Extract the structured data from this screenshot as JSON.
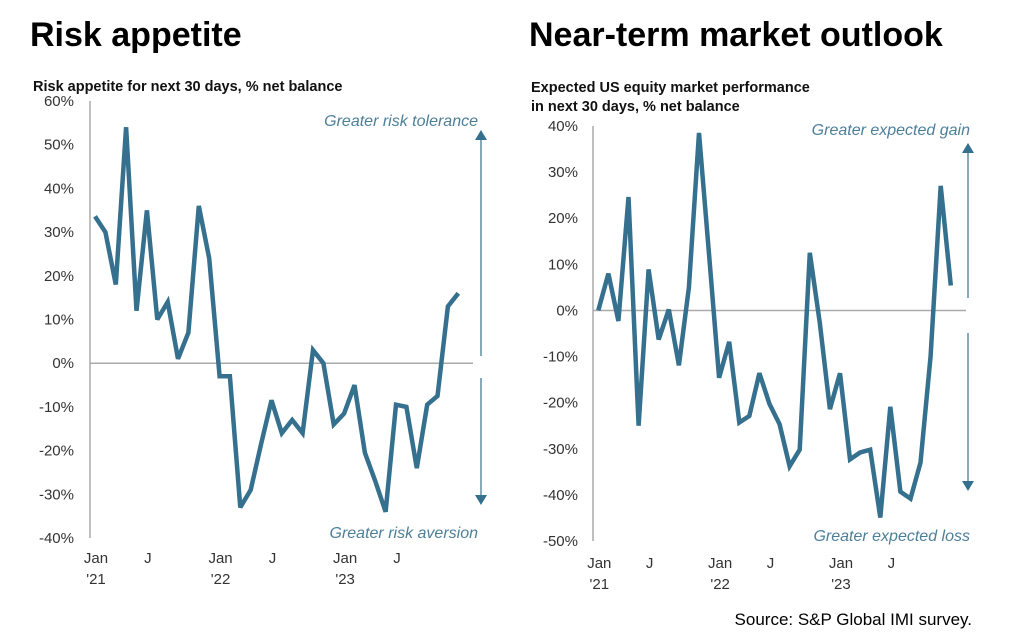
{
  "source": "Source: S&P Global IMI survey.",
  "chart_data": [
    {
      "type": "line",
      "title": "Risk appetite",
      "subtitle": "Risk appetite for next 30 days, % net balance",
      "ylabel": "% net balance",
      "ylim": [
        -40,
        60
      ],
      "yticks": [
        "60%",
        "50%",
        "40%",
        "30%",
        "20%",
        "10%",
        "0%",
        "-10%",
        "-20%",
        "-30%",
        "-40%"
      ],
      "ytick_values": [
        60,
        50,
        40,
        30,
        20,
        10,
        0,
        -10,
        -20,
        -30,
        -40
      ],
      "xticks": [
        {
          "line1": "Jan",
          "line2": "'21",
          "index": 0
        },
        {
          "line1": "J",
          "line2": "",
          "index": 5
        },
        {
          "line1": "Jan",
          "line2": "'22",
          "index": 12
        },
        {
          "line1": "J",
          "line2": "",
          "index": 17
        },
        {
          "line1": "Jan",
          "line2": "'23",
          "index": 24
        },
        {
          "line1": "J",
          "line2": "",
          "index": 29
        }
      ],
      "x_range": "Jan 2021 - Dec 2023 (monthly)",
      "annotation_top": "Greater risk tolerance",
      "annotation_bottom": "Greater risk aversion",
      "color": "#35708e",
      "series": [
        {
          "name": "Risk appetite",
          "values": [
            33.6,
            30,
            18,
            54,
            12,
            35,
            10,
            14,
            1,
            7,
            36,
            24,
            -3,
            -3,
            -33,
            -29,
            -18.5,
            -8.5,
            -16,
            -13,
            -16,
            3,
            0,
            -14,
            -11.5,
            -5,
            -20.5,
            -27,
            -34,
            -9.5,
            -10,
            -24,
            -9.5,
            -7.5,
            13,
            16
          ]
        }
      ]
    },
    {
      "type": "line",
      "title": "Near-term market outlook",
      "subtitle": "Expected US equity market performance",
      "subtitle2": "in next 30 days, % net balance",
      "ylabel": "% net balance",
      "ylim": [
        -50,
        40
      ],
      "yticks": [
        "40%",
        "30%",
        "20%",
        "10%",
        "0%",
        "-10%",
        "-20%",
        "-30%",
        "-40%",
        "-50%"
      ],
      "ytick_values": [
        40,
        30,
        20,
        10,
        0,
        -10,
        -20,
        -30,
        -40,
        -50
      ],
      "xticks": [
        {
          "line1": "Jan",
          "line2": "'21",
          "index": 0
        },
        {
          "line1": "J",
          "line2": "",
          "index": 5
        },
        {
          "line1": "Jan",
          "line2": "'22",
          "index": 12
        },
        {
          "line1": "J",
          "line2": "",
          "index": 17
        },
        {
          "line1": "Jan",
          "line2": "'23",
          "index": 24
        },
        {
          "line1": "J",
          "line2": "",
          "index": 29
        }
      ],
      "x_range": "Jan 2021 - Dec 2023 (monthly)",
      "annotation_top": "Greater expected gain",
      "annotation_bottom": "Greater  expected loss",
      "color": "#35708e",
      "series": [
        {
          "name": "Expected US equity performance",
          "values": [
            0,
            8,
            -2.3,
            24.6,
            -25,
            8.9,
            -6.3,
            0.2,
            -11.9,
            5,
            38.5,
            12,
            -14.6,
            -6.8,
            -24.3,
            -22.9,
            -13.6,
            -20.3,
            -24.7,
            -33.8,
            -30.2,
            12.5,
            -2.7,
            -21.4,
            -13.6,
            -32.3,
            -30.8,
            -30.2,
            -44.9,
            -20.9,
            -39.3,
            -40.8,
            -33,
            -9.9,
            27,
            5.4
          ]
        }
      ]
    }
  ]
}
